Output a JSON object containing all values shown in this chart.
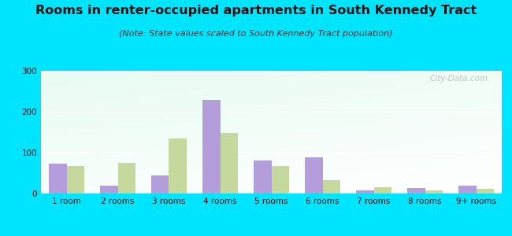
{
  "title": "Rooms in renter-occupied apartments in South Kennedy Tract",
  "subtitle": "(Note: State values scaled to South Kennedy Tract population)",
  "categories": [
    "1 room",
    "2 rooms",
    "3 rooms",
    "4 rooms",
    "5 rooms",
    "6 rooms",
    "7 rooms",
    "8 rooms",
    "9+ rooms"
  ],
  "south_kennedy": [
    73,
    20,
    45,
    228,
    80,
    88,
    7,
    13,
    20
  ],
  "oakland": [
    68,
    75,
    135,
    148,
    68,
    33,
    15,
    7,
    12
  ],
  "south_kennedy_color": "#b39ddb",
  "oakland_color": "#c5d89d",
  "background_outer": "#00e5ff",
  "background_inner_topleft": "#d0ede0",
  "background_inner_topright": "#e8f4f0",
  "background_inner_bottom": "#f5fff8",
  "ylim": [
    0,
    300
  ],
  "yticks": [
    0,
    100,
    200,
    300
  ],
  "bar_width": 0.35,
  "title_fontsize": 11.5,
  "subtitle_fontsize": 8,
  "tick_fontsize": 7.5,
  "legend_fontsize": 8.5,
  "watermark": "City-Data.com"
}
